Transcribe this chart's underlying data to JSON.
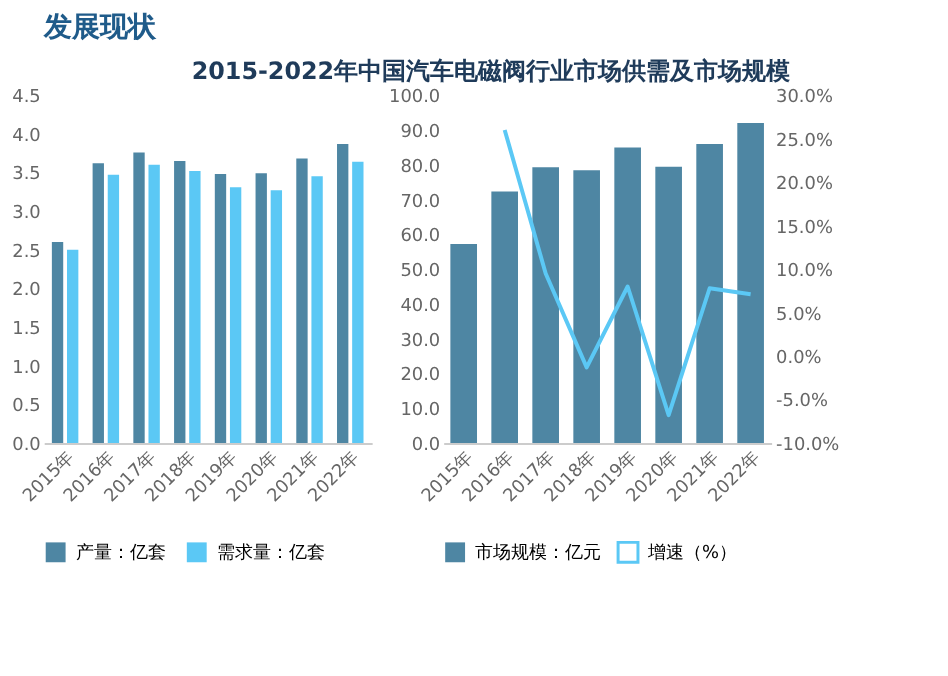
{
  "chart_data": [
    {
      "type": "bar",
      "title": "2015-2022年中国汽车电磁阀行业市场供需及市场规模",
      "annotations": [
        "发展现状"
      ],
      "categories": [
        "2015年",
        "2016年",
        "2017年",
        "2018年",
        "2019年",
        "2020年",
        "2021年",
        "2022年"
      ],
      "series": [
        {
          "name": "产量：亿套",
          "color": "#4e86a3",
          "values": [
            2.6,
            3.62,
            3.76,
            3.65,
            3.48,
            3.49,
            3.68,
            3.87
          ]
        },
        {
          "name": "需求量：亿套",
          "color": "#5bc8f5",
          "values": [
            2.5,
            3.47,
            3.6,
            3.52,
            3.31,
            3.27,
            3.45,
            3.64
          ]
        }
      ],
      "ylim": [
        0,
        4.5
      ],
      "yticks": [
        {
          "value": 0,
          "label": "0.0"
        },
        {
          "value": 0.5,
          "label": "0.5"
        },
        {
          "value": 1,
          "label": "1.0"
        },
        {
          "value": 1.5,
          "label": "1.5"
        },
        {
          "value": 2,
          "label": "2.0"
        },
        {
          "value": 2.5,
          "label": "2.5"
        },
        {
          "value": 3,
          "label": "3.0"
        },
        {
          "value": 3.5,
          "label": "3.5"
        },
        {
          "value": 4,
          "label": "4.0"
        },
        {
          "value": 4.5,
          "label": "4.5"
        }
      ],
      "legend": "bottom",
      "grid": false
    },
    {
      "type": "bar",
      "categories": [
        "2015年",
        "2016年",
        "2017年",
        "2018年",
        "2019年",
        "2020年",
        "2021年",
        "2022年"
      ],
      "series": [
        {
          "name": "市场规模：亿元",
          "color": "#4e86a3",
          "values": [
            57.2,
            72.3,
            79.3,
            78.4,
            85.0,
            79.4,
            86.0,
            92.0
          ]
        },
        {
          "name": "增速（%）",
          "type": "line",
          "axis": "y2",
          "color": "#5bc8f5",
          "values": [
            null,
            26.0,
            9.5,
            -1.3,
            8.0,
            -6.8,
            7.8,
            7.1
          ]
        }
      ],
      "ylim": [
        0,
        100
      ],
      "yticks": [
        {
          "value": 0,
          "label": "0.0"
        },
        {
          "value": 10,
          "label": "10.0"
        },
        {
          "value": 20,
          "label": "20.0"
        },
        {
          "value": 30,
          "label": "30.0"
        },
        {
          "value": 40,
          "label": "40.0"
        },
        {
          "value": 50,
          "label": "50.0"
        },
        {
          "value": 60,
          "label": "60.0"
        },
        {
          "value": 70,
          "label": "70.0"
        },
        {
          "value": 80,
          "label": "80.0"
        },
        {
          "value": 90,
          "label": "90.0"
        },
        {
          "value": 100,
          "label": "100.0"
        }
      ],
      "y2lim": [
        -10,
        30
      ],
      "y2ticks": [
        {
          "value": -10,
          "label": "-10.0%"
        },
        {
          "value": -5,
          "label": "-5.0%"
        },
        {
          "value": 0,
          "label": "0.0%"
        },
        {
          "value": 5,
          "label": "5.0%"
        },
        {
          "value": 10,
          "label": "10.0%"
        },
        {
          "value": 15,
          "label": "15.0%"
        },
        {
          "value": 20,
          "label": "20.0%"
        },
        {
          "value": 25,
          "label": "25.0%"
        },
        {
          "value": 30,
          "label": "30.0%"
        }
      ],
      "legend": "bottom",
      "grid": false
    }
  ]
}
